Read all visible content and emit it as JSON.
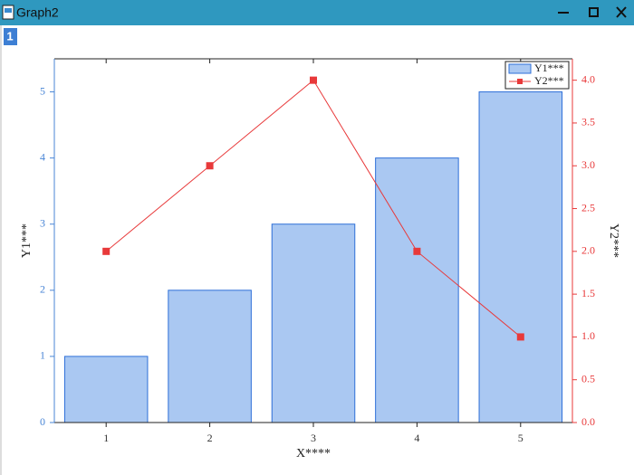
{
  "window": {
    "title": "Graph2",
    "layer": "1"
  },
  "chart_data": {
    "type": "bar-line",
    "x_label": "X****",
    "y_label": "Y1***",
    "y2_label": "Y2***",
    "x": [
      1,
      2,
      3,
      4,
      5
    ],
    "xlim": [
      0.5,
      5.5
    ],
    "xticks": [
      1,
      2,
      3,
      4,
      5
    ],
    "ylim": [
      0,
      5.5
    ],
    "yticks": [
      0,
      1,
      2,
      3,
      4,
      5
    ],
    "y2lim": [
      0,
      4.25
    ],
    "y2ticks": [
      {
        "value": 0,
        "label": "0.0"
      },
      {
        "value": 0.5,
        "label": "0.5"
      },
      {
        "value": 1,
        "label": "1.0"
      },
      {
        "value": 1.5,
        "label": "1.5"
      },
      {
        "value": 2,
        "label": "2.0"
      },
      {
        "value": 2.5,
        "label": "2.5"
      },
      {
        "value": 3,
        "label": "3.0"
      },
      {
        "value": 3.5,
        "label": "3.5"
      },
      {
        "value": 4,
        "label": "4.0"
      }
    ],
    "bar_width": 0.8,
    "legend": "upper right",
    "series": [
      {
        "name": "Y1***",
        "type": "bar",
        "color": "#aac8f2",
        "edge_color": "#2e6fd8",
        "values": [
          1,
          2,
          3,
          4,
          5
        ]
      },
      {
        "name": "Y2***",
        "type": "line",
        "axis": "y2",
        "color": "#e8393a",
        "values": [
          2,
          3,
          4,
          2,
          1
        ]
      }
    ]
  }
}
